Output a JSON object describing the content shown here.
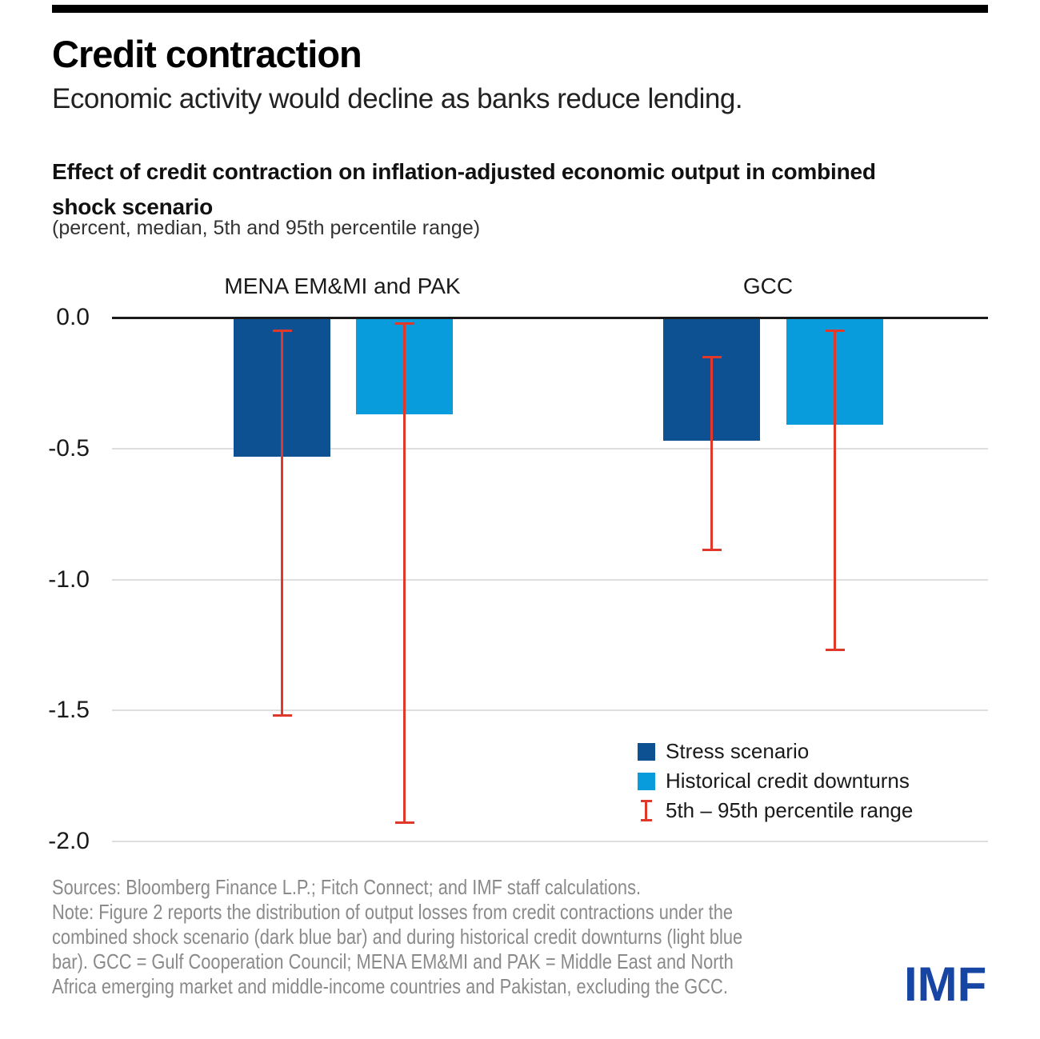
{
  "header": {
    "title": "Credit contraction",
    "subtitle": "Economic activity would decline as banks reduce lending."
  },
  "chart": {
    "heading_line1": "Effect of credit contraction on inflation-adjusted economic output in combined",
    "heading_line2": "shock scenario",
    "unit_label": "(percent, median, 5th and 95th percentile range)"
  },
  "chart_data": {
    "type": "bar",
    "title": "Effect of credit contraction on inflation-adjusted economic output in combined shock scenario",
    "unit": "percent, median, 5th and 95th percentile range",
    "series_names": [
      "Stress scenario",
      "Historical credit downturns"
    ],
    "groups": [
      {
        "label": "MENA EM&MI and PAK",
        "bars": [
          {
            "series": "Stress scenario",
            "median": -0.53,
            "p95": -0.05,
            "p5": -1.52
          },
          {
            "series": "Historical credit downturns",
            "median": -0.37,
            "p95": -0.02,
            "p5": -1.93
          }
        ]
      },
      {
        "label": "GCC",
        "bars": [
          {
            "series": "Stress scenario",
            "median": -0.47,
            "p95": -0.15,
            "p5": -0.89
          },
          {
            "series": "Historical credit downturns",
            "median": -0.41,
            "p95": -0.05,
            "p5": -1.27
          }
        ]
      }
    ],
    "y_ticks": [
      {
        "label": "0.0",
        "value": 0
      },
      {
        "label": "-0.5",
        "value": -0.5
      },
      {
        "label": "-1.0",
        "value": -1.0
      },
      {
        "label": "-1.5",
        "value": -1.5
      },
      {
        "label": "-2.0",
        "value": -2.0
      }
    ],
    "ylim": [
      0,
      -2.0
    ],
    "grid": true,
    "legend_position": "lower right",
    "colors": {
      "stress": "#0D5193",
      "historical": "#089CDC",
      "range": "#E0392C",
      "grid": "#DEDEDE",
      "axis": "#1A1A1A"
    }
  },
  "legend": {
    "items": [
      {
        "label": "Stress scenario",
        "swatch": "square-dark"
      },
      {
        "label": "Historical credit downturns",
        "swatch": "square-light"
      },
      {
        "label": "5th – 95th percentile range",
        "swatch": "ibeam"
      }
    ]
  },
  "footer": {
    "sources": "Sources: Bloomberg Finance L.P.; Fitch Connect; and IMF staff calculations.",
    "note_lines": [
      "Note: Figure 2 reports the distribution of output losses from credit contractions under the",
      "combined shock scenario (dark blue bar) and during historical credit downturns (light blue",
      "bar). GCC = Gulf Cooperation Council; MENA EM&MI and PAK = Middle East and North",
      "Africa emerging market and middle-income countries and Pakistan, excluding the GCC."
    ],
    "logo": "IMF"
  }
}
